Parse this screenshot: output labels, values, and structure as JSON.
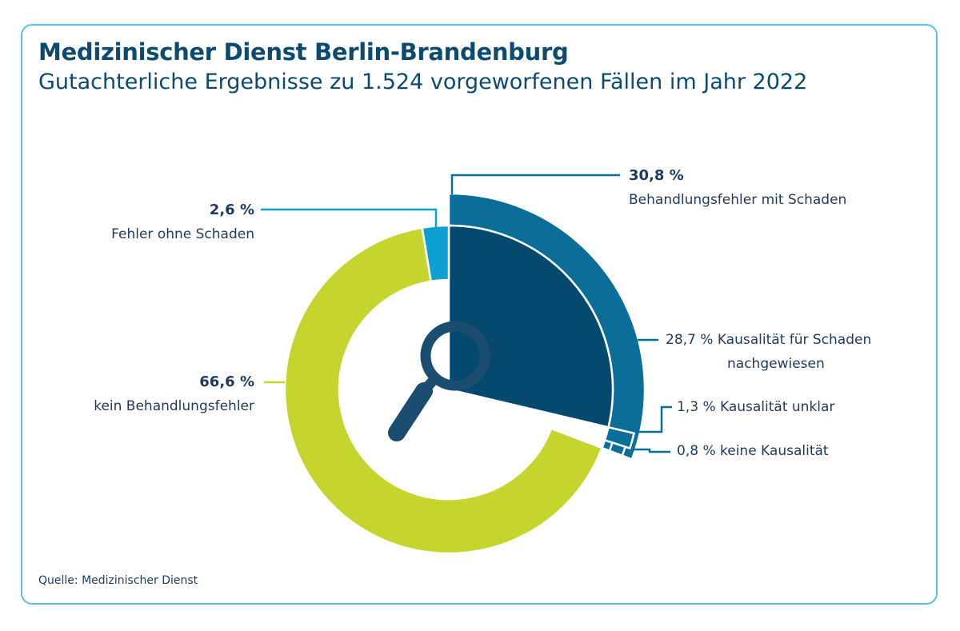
{
  "title": "Medizinischer Dienst Berlin-Brandenburg",
  "subtitle": "Gutachterliche Ergebnisse zu 1.524 vorgeworfenen Fällen im Jahr 2022",
  "source": "Quelle: Medizinischer Dienst",
  "colors": {
    "behandlungsfehler_mit_schaden": "#0a6e99",
    "kausalitaet_nachgewiesen": "#05496f",
    "kausalitaet_unklar": "#0a6e99",
    "keine_kausalitaet": "#0a6e99",
    "fehler_ohne_schaden": "#0ea0d2",
    "kein_behandlungsfehler": "#c6d52e",
    "leader": "#0ea0d2",
    "leader_green": "#c6d52e",
    "leader_dark": "#0a6e99"
  },
  "icons": {
    "center": "magnifying-glass-icon"
  },
  "chart_data": {
    "type": "pie",
    "title": "Gutachterliche Ergebnisse zu 1.524 vorgeworfenen Fällen im Jahr 2022",
    "total_cases": 1524,
    "slices": [
      {
        "name": "Behandlungsfehler mit Schaden",
        "value": 30.8,
        "pct_label": "30,8 %",
        "children": [
          {
            "name": "Kausalität für Schaden nachgewiesen",
            "value": 28.7,
            "pct_label": "28,7 %"
          },
          {
            "name": "Kausalität unklar",
            "value": 1.3,
            "pct_label": "1,3 %"
          },
          {
            "name": "keine Kausalität",
            "value": 0.8,
            "pct_label": "0,8 %"
          }
        ]
      },
      {
        "name": "kein Behandlungsfehler",
        "value": 66.6,
        "pct_label": "66,6 %"
      },
      {
        "name": "Fehler ohne Schaden",
        "value": 2.6,
        "pct_label": "2,6 %"
      }
    ]
  },
  "labels": {
    "mit_schaden_pct": "30,8 %",
    "mit_schaden_text": "Behandlungsfehler mit Schaden",
    "ohne_schaden_pct": "2,6 %",
    "ohne_schaden_text": "Fehler ohne Schaden",
    "kein_pct": "66,6 %",
    "kein_text": "kein Behandlungsfehler",
    "nachgewiesen_line1": "28,7 % Kausalität für Schaden",
    "nachgewiesen_line2": "nachgewiesen",
    "unklar": "1,3 % Kausalität unklar",
    "keine": "0,8 % keine Kausalität"
  }
}
